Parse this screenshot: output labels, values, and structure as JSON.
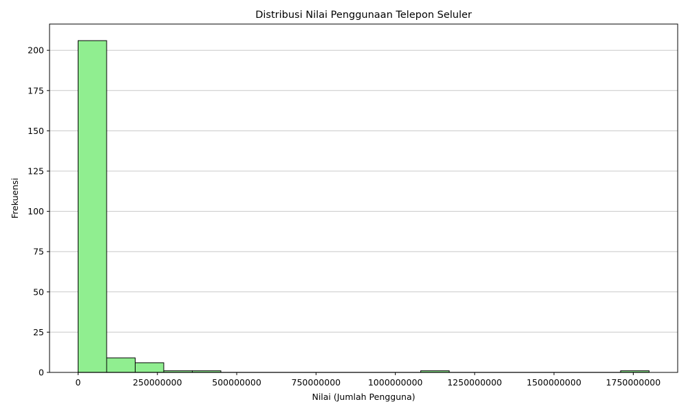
{
  "chart_data": {
    "type": "bar",
    "title": "Distribusi Nilai Penggunaan Telepon Seluler",
    "xlabel": "Nilai (Jumlah Pengguna)",
    "ylabel": "Frekuensi",
    "bins": [
      {
        "start": 0,
        "end": 90000000,
        "count": 206
      },
      {
        "start": 90000000,
        "end": 180000000,
        "count": 9
      },
      {
        "start": 180000000,
        "end": 270000000,
        "count": 6
      },
      {
        "start": 270000000,
        "end": 360000000,
        "count": 1
      },
      {
        "start": 360000000,
        "end": 450000000,
        "count": 1
      },
      {
        "start": 450000000,
        "end": 540000000,
        "count": 0
      },
      {
        "start": 540000000,
        "end": 630000000,
        "count": 0
      },
      {
        "start": 630000000,
        "end": 720000000,
        "count": 0
      },
      {
        "start": 720000000,
        "end": 810000000,
        "count": 0
      },
      {
        "start": 810000000,
        "end": 900000000,
        "count": 0
      },
      {
        "start": 900000000,
        "end": 990000000,
        "count": 0
      },
      {
        "start": 990000000,
        "end": 1080000000,
        "count": 0
      },
      {
        "start": 1080000000,
        "end": 1170000000,
        "count": 1
      },
      {
        "start": 1170000000,
        "end": 1260000000,
        "count": 0
      },
      {
        "start": 1260000000,
        "end": 1350000000,
        "count": 0
      },
      {
        "start": 1350000000,
        "end": 1440000000,
        "count": 0
      },
      {
        "start": 1440000000,
        "end": 1530000000,
        "count": 0
      },
      {
        "start": 1530000000,
        "end": 1620000000,
        "count": 0
      },
      {
        "start": 1620000000,
        "end": 1710000000,
        "count": 0
      },
      {
        "start": 1710000000,
        "end": 1800000000,
        "count": 1
      }
    ],
    "xlim": [
      -90000000,
      1890000000
    ],
    "ylim": [
      0,
      216.3
    ],
    "xticks": [
      0,
      250000000,
      500000000,
      750000000,
      1000000000,
      1250000000,
      1500000000,
      1750000000
    ],
    "xtick_labels": [
      "0",
      "250000000",
      "500000000",
      "750000000",
      "1000000000",
      "1250000000",
      "1500000000",
      "1750000000"
    ],
    "yticks": [
      0,
      25,
      50,
      75,
      100,
      125,
      150,
      175,
      200
    ],
    "ytick_labels": [
      "0",
      "25",
      "50",
      "75",
      "100",
      "125",
      "150",
      "175",
      "200"
    ],
    "grid": "y-axis",
    "bar_color": "#90ee90",
    "edge_color": "#000000",
    "grid_color": "#c8c8c8"
  }
}
